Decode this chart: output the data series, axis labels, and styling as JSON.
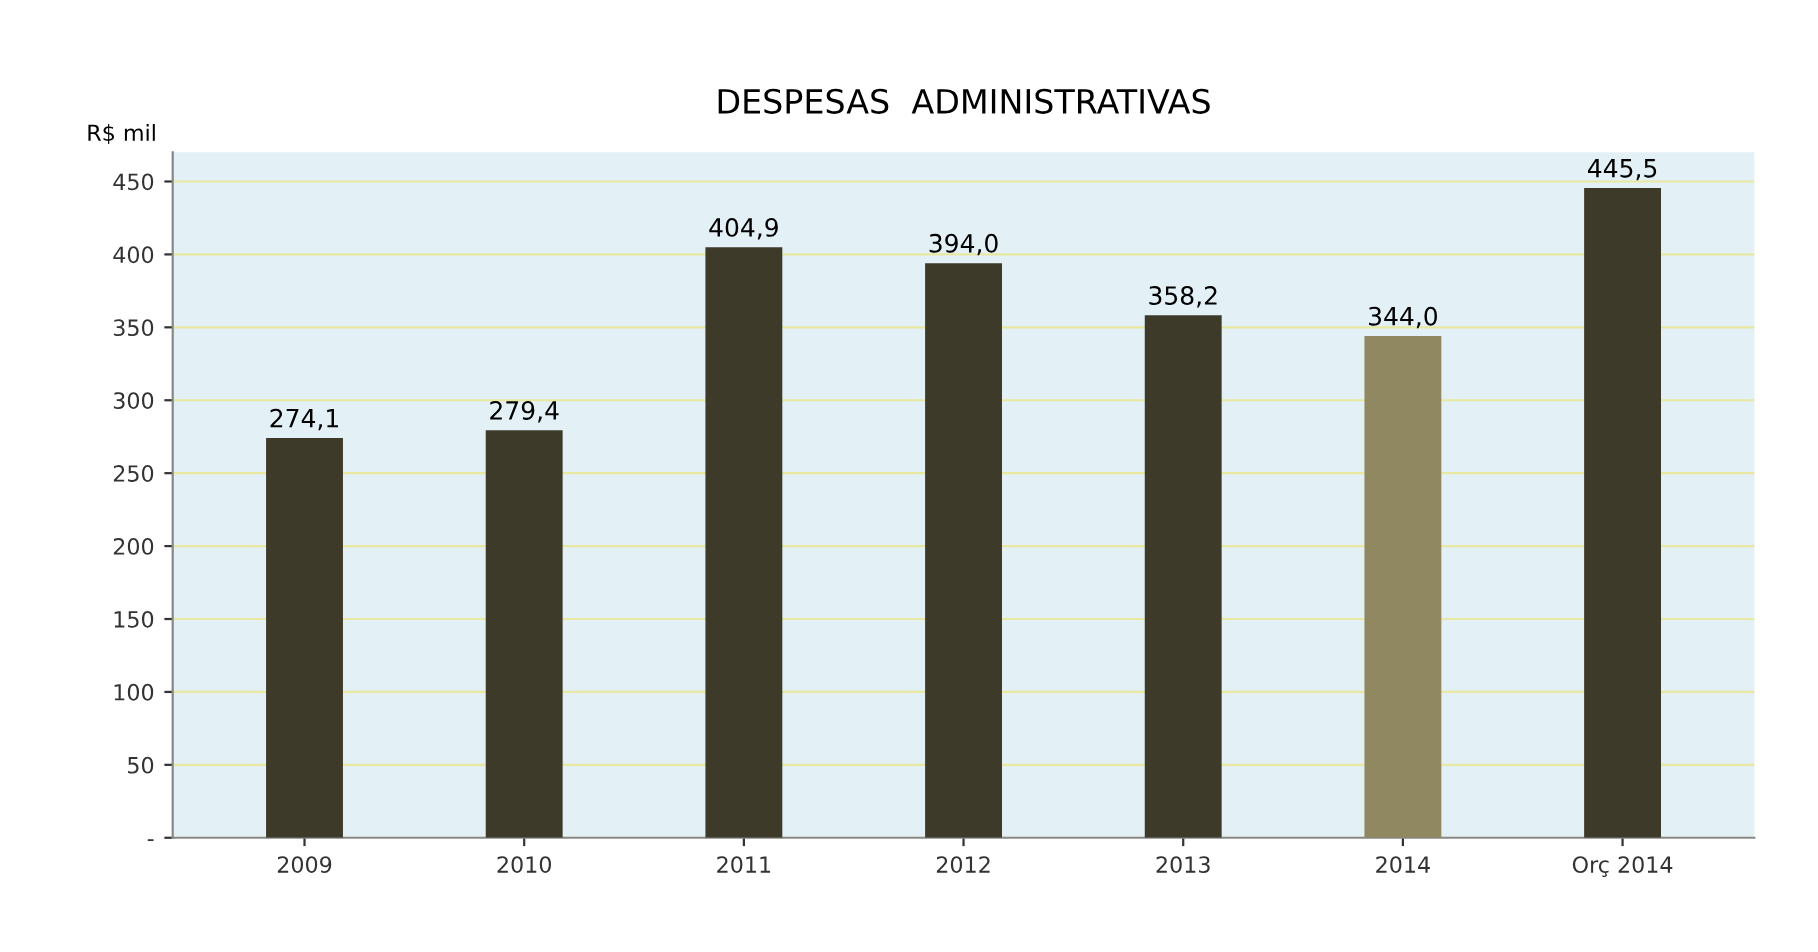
{
  "chart_data": {
    "type": "bar",
    "title": "DESPESAS  ADMINISTRATIVAS",
    "ylabel": "R$ mil",
    "categories": [
      "2009",
      "2010",
      "2011",
      "2012",
      "2013",
      "2014",
      "Orç 2014"
    ],
    "values": [
      274.1,
      279.4,
      404.9,
      394.0,
      358.2,
      344.0,
      445.5
    ],
    "value_labels": [
      "274,1",
      "279,4",
      "404,9",
      "394,0",
      "358,2",
      "344,0",
      "445,5"
    ],
    "colors": [
      "#3d3a2a",
      "#3d3a2a",
      "#3d3a2a",
      "#3d3a2a",
      "#3d3a2a",
      "#8f8860",
      "#3d3a2a"
    ],
    "ylim": [
      0,
      470
    ],
    "yticks": [
      {
        "value": 0,
        "label": "-"
      },
      50,
      100,
      150,
      200,
      250,
      300,
      350,
      400,
      450
    ],
    "grid": "y",
    "legend": false
  }
}
